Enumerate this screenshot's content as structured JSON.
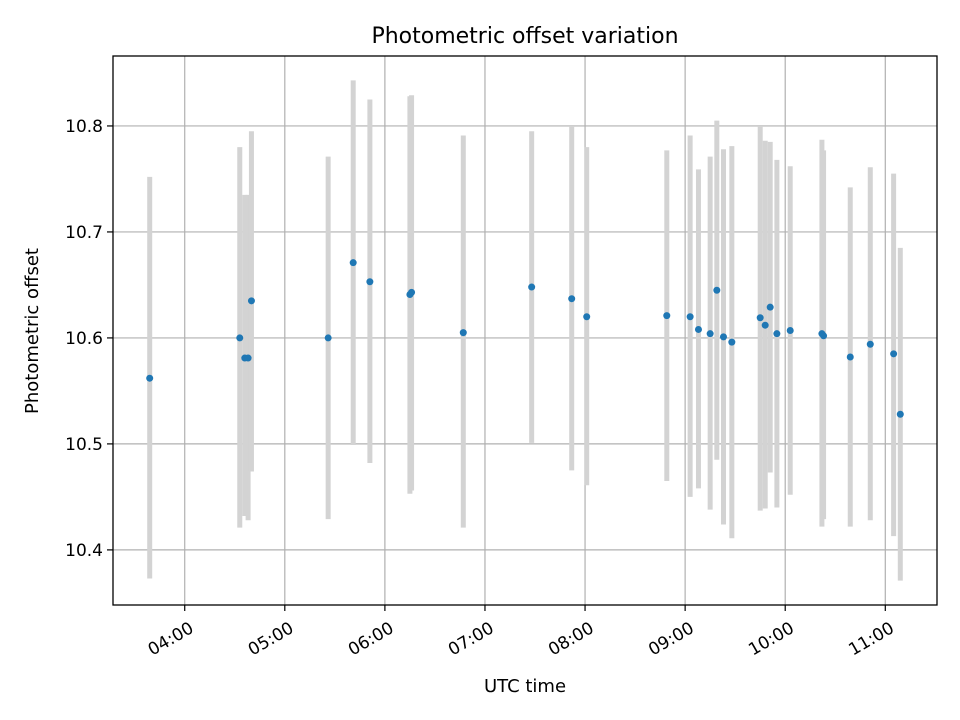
{
  "chart_data": {
    "type": "scatter",
    "title": "Photometric offset variation",
    "xlabel": "UTC time",
    "ylabel": "Photometric offset",
    "xlim": [
      "03:17",
      "11:31"
    ],
    "ylim": [
      10.348,
      10.866
    ],
    "grid": true,
    "x_ticks": [
      "04:00",
      "05:00",
      "06:00",
      "07:00",
      "08:00",
      "09:00",
      "10:00",
      "11:00"
    ],
    "y_ticks": [
      "10.4",
      "10.5",
      "10.6",
      "10.7",
      "10.8"
    ],
    "marker_color": "#1f77b4",
    "errorbar_color": "#d3d3d3",
    "points": [
      {
        "x": "03:39",
        "y": 10.562,
        "ylo": 10.373,
        "yhi": 10.752
      },
      {
        "x": "04:33",
        "y": 10.6,
        "ylo": 10.421,
        "yhi": 10.78
      },
      {
        "x": "04:36",
        "y": 10.581,
        "ylo": 10.432,
        "yhi": 10.735
      },
      {
        "x": "04:38",
        "y": 10.581,
        "ylo": 10.428,
        "yhi": 10.735
      },
      {
        "x": "04:40",
        "y": 10.635,
        "ylo": 10.474,
        "yhi": 10.795
      },
      {
        "x": "05:26",
        "y": 10.6,
        "ylo": 10.429,
        "yhi": 10.771
      },
      {
        "x": "05:41",
        "y": 10.671,
        "ylo": 10.499,
        "yhi": 10.843
      },
      {
        "x": "05:51",
        "y": 10.653,
        "ylo": 10.482,
        "yhi": 10.825
      },
      {
        "x": "06:15",
        "y": 10.641,
        "ylo": 10.453,
        "yhi": 10.828
      },
      {
        "x": "06:16",
        "y": 10.643,
        "ylo": 10.456,
        "yhi": 10.829
      },
      {
        "x": "06:47",
        "y": 10.605,
        "ylo": 10.421,
        "yhi": 10.791
      },
      {
        "x": "07:28",
        "y": 10.648,
        "ylo": 10.501,
        "yhi": 10.795
      },
      {
        "x": "07:52",
        "y": 10.637,
        "ylo": 10.475,
        "yhi": 10.8
      },
      {
        "x": "08:01",
        "y": 10.62,
        "ylo": 10.461,
        "yhi": 10.78
      },
      {
        "x": "08:49",
        "y": 10.621,
        "ylo": 10.465,
        "yhi": 10.777
      },
      {
        "x": "09:03",
        "y": 10.62,
        "ylo": 10.45,
        "yhi": 10.791
      },
      {
        "x": "09:08",
        "y": 10.608,
        "ylo": 10.458,
        "yhi": 10.759
      },
      {
        "x": "09:15",
        "y": 10.604,
        "ylo": 10.438,
        "yhi": 10.771
      },
      {
        "x": "09:19",
        "y": 10.645,
        "ylo": 10.485,
        "yhi": 10.805
      },
      {
        "x": "09:23",
        "y": 10.601,
        "ylo": 10.424,
        "yhi": 10.778
      },
      {
        "x": "09:28",
        "y": 10.596,
        "ylo": 10.411,
        "yhi": 10.781
      },
      {
        "x": "09:45",
        "y": 10.619,
        "ylo": 10.437,
        "yhi": 10.8
      },
      {
        "x": "09:48",
        "y": 10.612,
        "ylo": 10.439,
        "yhi": 10.786
      },
      {
        "x": "09:51",
        "y": 10.629,
        "ylo": 10.473,
        "yhi": 10.785
      },
      {
        "x": "09:55",
        "y": 10.604,
        "ylo": 10.44,
        "yhi": 10.768
      },
      {
        "x": "10:03",
        "y": 10.607,
        "ylo": 10.452,
        "yhi": 10.762
      },
      {
        "x": "10:22",
        "y": 10.604,
        "ylo": 10.422,
        "yhi": 10.787
      },
      {
        "x": "10:23",
        "y": 10.602,
        "ylo": 10.429,
        "yhi": 10.777
      },
      {
        "x": "10:39",
        "y": 10.582,
        "ylo": 10.422,
        "yhi": 10.742
      },
      {
        "x": "10:51",
        "y": 10.594,
        "ylo": 10.428,
        "yhi": 10.761
      },
      {
        "x": "11:05",
        "y": 10.585,
        "ylo": 10.413,
        "yhi": 10.755
      },
      {
        "x": "11:09",
        "y": 10.528,
        "ylo": 10.371,
        "yhi": 10.685
      }
    ]
  }
}
